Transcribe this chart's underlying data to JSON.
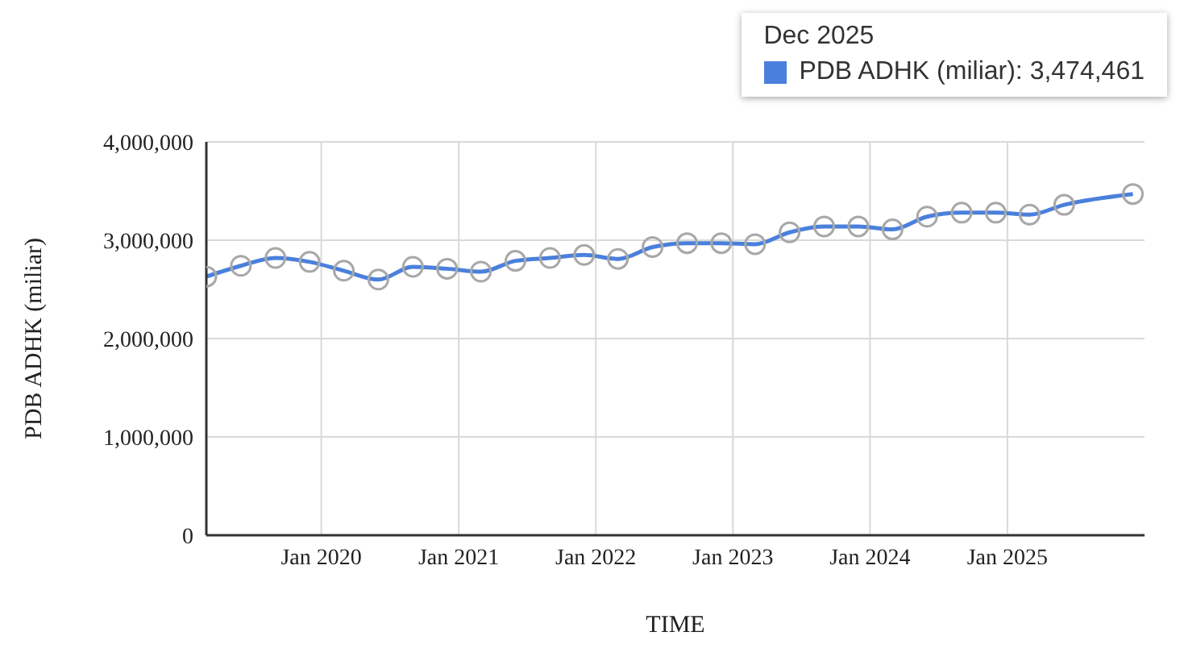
{
  "chart_data": {
    "type": "line",
    "xlabel": "TIME",
    "ylabel": "PDB ADHK (miliar)",
    "x": [
      "2019-03",
      "2019-06",
      "2019-09",
      "2019-12",
      "2020-03",
      "2020-06",
      "2020-09",
      "2020-12",
      "2021-03",
      "2021-06",
      "2021-09",
      "2021-12",
      "2022-03",
      "2022-06",
      "2022-09",
      "2022-12",
      "2023-03",
      "2023-06",
      "2023-09",
      "2023-12",
      "2024-03",
      "2024-06",
      "2024-09",
      "2024-12",
      "2025-03",
      "2025-06",
      "2025-12"
    ],
    "series": [
      {
        "color": "#4a80dc",
        "values": [
          2630000,
          2740000,
          2820000,
          2780000,
          2690000,
          2600000,
          2730000,
          2710000,
          2680000,
          2790000,
          2820000,
          2850000,
          2810000,
          2930000,
          2970000,
          2970000,
          2960000,
          3080000,
          3140000,
          3140000,
          3110000,
          3240000,
          3280000,
          3280000,
          3260000,
          3360000,
          3470000
        ]
      }
    ],
    "xlim": [
      "2019-03",
      "2026-01"
    ],
    "xticks": [
      {
        "value": "2020-01",
        "label": "Jan 2020"
      },
      {
        "value": "2021-01",
        "label": "Jan 2021"
      },
      {
        "value": "2022-01",
        "label": "Jan 2022"
      },
      {
        "value": "2023-01",
        "label": "Jan 2023"
      },
      {
        "value": "2024-01",
        "label": "Jan 2024"
      },
      {
        "value": "2025-01",
        "label": "Jan 2025"
      }
    ],
    "ylim": [
      0,
      4000000
    ],
    "yticks": [
      {
        "value": 0,
        "label": "0"
      },
      {
        "value": 1000000,
        "label": "1,000,000"
      },
      {
        "value": 2000000,
        "label": "2,000,000"
      },
      {
        "value": 3000000,
        "label": "3,000,000"
      },
      {
        "value": 4000000,
        "label": "4,000,000"
      }
    ],
    "grid": true,
    "marker": "circle",
    "line_style": "solid",
    "annotations": [
      "Dec 2025",
      "PDB ADHK (miliar): 3,474,461"
    ]
  }
}
